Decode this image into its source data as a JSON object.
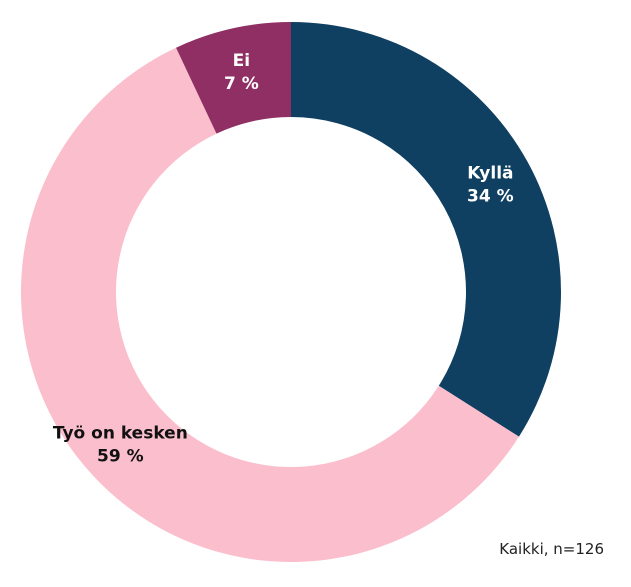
{
  "chart_data": {
    "type": "pie",
    "donut": true,
    "start_angle_deg": 0,
    "direction": "clockwise",
    "slices": [
      {
        "category": "Kyllä",
        "value": 34,
        "value_label": "34 %",
        "color": "#0f3f61",
        "label_color": "#ffffff"
      },
      {
        "category": "Työ on kesken",
        "value": 59,
        "value_label": "59 %",
        "color": "#fbbecd",
        "label_color": "#111111"
      },
      {
        "category": "Ei",
        "value": 7,
        "value_label": "7 %",
        "color": "#8f2f64",
        "label_color": "#ffffff"
      }
    ]
  },
  "footnote": "Kaikki, n=126"
}
